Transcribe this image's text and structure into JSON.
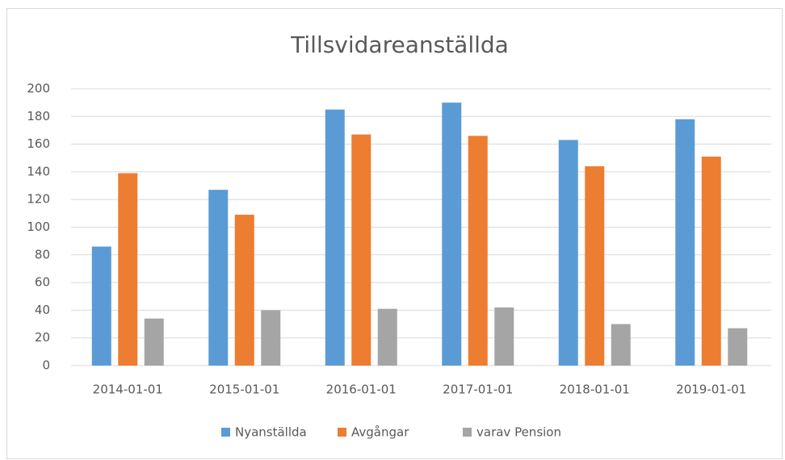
{
  "chart_data": {
    "type": "bar",
    "title": "Tillsvidareanställda",
    "categories": [
      "2014-01-01",
      "2015-01-01",
      "2016-01-01",
      "2017-01-01",
      "2018-01-01",
      "2019-01-01"
    ],
    "series": [
      {
        "name": "Nyanställda",
        "color": "#5b9bd5",
        "values": [
          86,
          127,
          185,
          190,
          163,
          178
        ]
      },
      {
        "name": "Avgångar",
        "color": "#ed7d31",
        "values": [
          139,
          109,
          167,
          166,
          144,
          151
        ]
      },
      {
        "name": "varav Pension",
        "color": "#a5a5a5",
        "values": [
          34,
          40,
          41,
          42,
          30,
          27
        ]
      }
    ],
    "ylim": [
      0,
      200
    ],
    "yticks": [
      0,
      20,
      40,
      60,
      80,
      100,
      120,
      140,
      160,
      180,
      200
    ],
    "grid": true,
    "legend": "bottom"
  }
}
